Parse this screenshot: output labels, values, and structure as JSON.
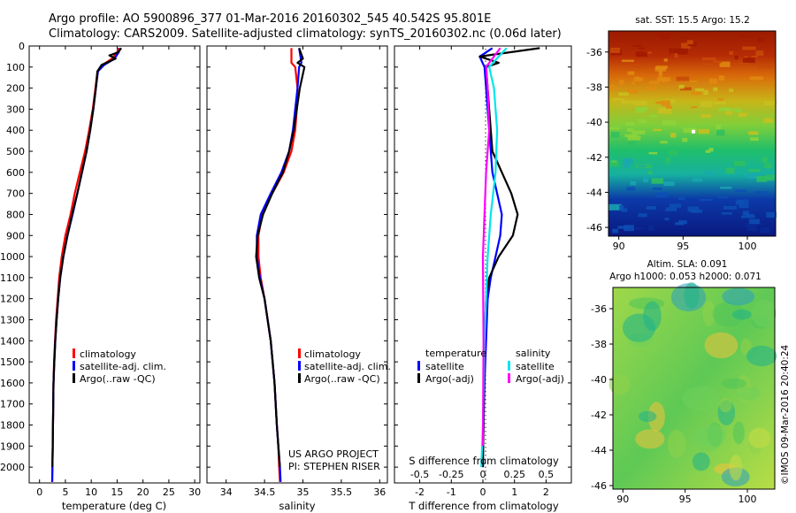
{
  "header": {
    "line1": "Argo profile: AO 5900896_377 01-Mar-2016 20160302_545 40.542S 95.801E",
    "line2": "Climatology: CARS2009. Satellite-adjusted climatology: synTS_20160302.nc (0.06d later)"
  },
  "colors": {
    "climatology": "#ff0000",
    "satellite": "#0000ff",
    "argo": "#000000",
    "sal_satellite": "#00e5ee",
    "sal_argo": "#ff00ff"
  },
  "depth_ticks": [
    "0",
    "100",
    "200",
    "300",
    "400",
    "500",
    "600",
    "700",
    "800",
    "900",
    "1000",
    "1100",
    "1200",
    "1300",
    "1400",
    "1500",
    "1600",
    "1700",
    "1800",
    "1900",
    "2000"
  ],
  "chart_data": [
    {
      "type": "line",
      "xlabel": "temperature (deg C)",
      "ylabel": "",
      "xlim": [
        -2,
        31
      ],
      "ylim": [
        2075,
        0
      ],
      "xticks": [
        "0",
        "5",
        "10",
        "15",
        "20",
        "25",
        "30"
      ],
      "legend": [
        "climatology",
        "satellite-adj. clim.",
        "Argo(..raw -QC)"
      ],
      "series": [
        {
          "name": "climatology",
          "color": "#ff0000",
          "x": [
            15.3,
            15.0,
            14.0,
            12.2,
            11.2,
            10.8,
            10.3,
            9.6,
            8.8,
            7.8,
            6.8,
            6.0,
            5.0,
            4.3,
            3.8,
            3.5,
            3.2,
            3.0,
            2.8,
            2.7,
            2.6,
            2.5,
            2.45
          ],
          "y": [
            10,
            30,
            60,
            90,
            120,
            200,
            300,
            400,
            500,
            600,
            700,
            800,
            900,
            1000,
            1100,
            1200,
            1300,
            1400,
            1500,
            1600,
            1800,
            2000,
            2070
          ]
        },
        {
          "name": "satellite-adj. clim.",
          "color": "#0000ff",
          "x": [
            15.6,
            15.3,
            14.5,
            12.5,
            11.3,
            10.9,
            10.4,
            9.8,
            9.1,
            8.2,
            7.3,
            6.4,
            5.4,
            4.6,
            4.0,
            3.6,
            3.3,
            3.05,
            2.85,
            2.7,
            2.6,
            2.5,
            2.45
          ],
          "y": [
            10,
            30,
            60,
            90,
            120,
            200,
            300,
            400,
            500,
            600,
            700,
            800,
            900,
            1000,
            1100,
            1200,
            1300,
            1400,
            1500,
            1600,
            1800,
            2000,
            2070
          ]
        },
        {
          "name": "Argo(..raw -QC)",
          "color": "#000000",
          "x": [
            15.8,
            15.2,
            13.5,
            14.7,
            12.0,
            11.2,
            10.9,
            10.4,
            9.8,
            9.1,
            8.2,
            7.3,
            6.3,
            5.4,
            4.6,
            4.0,
            3.6,
            3.3,
            3.05,
            2.85,
            2.7,
            2.6,
            2.5
          ],
          "y": [
            10,
            30,
            45,
            60,
            90,
            120,
            200,
            300,
            400,
            500,
            600,
            700,
            800,
            900,
            1000,
            1100,
            1200,
            1300,
            1400,
            1500,
            1600,
            1800,
            2000
          ]
        }
      ]
    },
    {
      "type": "line",
      "xlabel": "salinity",
      "ylabel": "",
      "xlim": [
        33.75,
        36.1
      ],
      "ylim": [
        2075,
        0
      ],
      "xticks": [
        "34",
        "34.5",
        "35",
        "35.5",
        "36"
      ],
      "legend": [
        "climatology",
        "satellite-adj. clim.",
        "Argo(..raw -QC)"
      ],
      "series": [
        {
          "name": "climatology",
          "color": "#ff0000",
          "x": [
            34.85,
            34.85,
            34.9,
            34.93,
            34.92,
            34.9,
            34.85,
            34.75,
            34.6,
            34.47,
            34.42,
            34.42,
            34.45,
            34.5,
            34.58,
            34.63,
            34.66,
            34.68,
            34.69,
            34.7
          ],
          "y": [
            10,
            80,
            100,
            200,
            300,
            400,
            500,
            600,
            700,
            800,
            900,
            1000,
            1100,
            1200,
            1400,
            1600,
            1800,
            1900,
            2000,
            2070
          ]
        },
        {
          "name": "satellite-adj. clim.",
          "color": "#0000ff",
          "x": [
            34.95,
            34.98,
            34.95,
            34.93,
            34.9,
            34.87,
            34.82,
            34.72,
            34.58,
            34.45,
            34.4,
            34.4,
            34.44,
            34.5,
            34.58,
            34.63,
            34.66,
            34.68,
            34.7,
            34.71
          ],
          "y": [
            10,
            80,
            100,
            200,
            300,
            400,
            500,
            600,
            700,
            800,
            900,
            1000,
            1100,
            1200,
            1400,
            1600,
            1800,
            1900,
            2000,
            2070
          ]
        },
        {
          "name": "Argo(..raw -QC)",
          "color": "#000000",
          "x": [
            34.95,
            35.0,
            34.93,
            35.02,
            34.96,
            34.92,
            34.88,
            34.82,
            34.74,
            34.6,
            34.48,
            34.41,
            34.39,
            34.43,
            34.5,
            34.58,
            34.63,
            34.66,
            34.68,
            34.7
          ],
          "y": [
            10,
            60,
            80,
            100,
            200,
            300,
            400,
            500,
            600,
            700,
            800,
            900,
            1000,
            1100,
            1200,
            1400,
            1600,
            1800,
            1900,
            2000
          ]
        }
      ]
    },
    {
      "type": "line",
      "xlabel": "T difference from climatology",
      "xlabel_top": "S difference from climatology",
      "ylabel": "",
      "xlim": [
        -2.8,
        2.8
      ],
      "ylim": [
        2075,
        0
      ],
      "xticks": [
        "-2",
        "-1",
        "0",
        "1",
        "2"
      ],
      "xticks_top": [
        "-0.5",
        "-0.25",
        "0",
        "0.25",
        "0.5"
      ],
      "legend_headers": [
        "temperature",
        "salinity"
      ],
      "legend": [
        "satellite",
        "Argo(-adj)",
        "satellite",
        "Argo(-adj)"
      ],
      "series": [
        {
          "name": "satellite",
          "color": "#0000ff",
          "x": [
            0.3,
            -0.1,
            0.05,
            0.1,
            0.2,
            0.3,
            0.45,
            0.6,
            0.55,
            0.4,
            0.25,
            0.15,
            0.1,
            0.05,
            0.02,
            0.0,
            0.0
          ],
          "y": [
            10,
            50,
            100,
            200,
            400,
            600,
            700,
            800,
            900,
            1000,
            1100,
            1200,
            1400,
            1600,
            1800,
            1900,
            2000
          ]
        },
        {
          "name": "Argo(-adj)",
          "color": "#000000",
          "x": [
            1.8,
            -0.1,
            0.5,
            0.1,
            0.2,
            0.3,
            0.6,
            0.9,
            1.1,
            0.95,
            0.5,
            0.2,
            0.1,
            0.05,
            0.03,
            0.02,
            0.0
          ],
          "y": [
            10,
            50,
            80,
            100,
            300,
            500,
            600,
            700,
            800,
            900,
            1000,
            1100,
            1200,
            1400,
            1600,
            1800,
            2000
          ]
        },
        {
          "name": "satellite",
          "color": "#00e5ee",
          "x": [
            0.75,
            0.5,
            0.2,
            0.35,
            0.45,
            0.4,
            0.25,
            0.15,
            0.05,
            0.0,
            -0.05
          ],
          "y": [
            10,
            50,
            100,
            200,
            400,
            600,
            800,
            1000,
            1400,
            1800,
            2000
          ]
        },
        {
          "name": "Argo(-adj)",
          "color": "#ff00ff",
          "x": [
            0.55,
            0.35,
            0.1,
            0.15,
            0.2,
            0.1,
            0.05,
            0.0,
            0.02,
            0.0
          ],
          "y": [
            10,
            50,
            100,
            200,
            400,
            600,
            800,
            1000,
            1400,
            1900
          ]
        }
      ]
    },
    {
      "type": "heatmap",
      "title": "sat. SST: 15.5 Argo: 15.2",
      "xlim": [
        89.2,
        102.2
      ],
      "ylim": [
        -46.5,
        -34.8
      ],
      "xticks": [
        "90",
        "95",
        "100"
      ],
      "yticks": [
        "-36",
        "-38",
        "-40",
        "-42",
        "-44",
        "-46"
      ],
      "marker": {
        "x": 95.8,
        "y": -40.54
      }
    },
    {
      "type": "heatmap",
      "title": "Altim. SLA: 0.091",
      "subtitle": "Argo h1000: 0.053 h2000: 0.071",
      "xlim": [
        89.2,
        102.2
      ],
      "ylim": [
        -46.2,
        -34.8
      ],
      "xticks": [
        "90",
        "95",
        "100"
      ],
      "yticks": [
        "-36",
        "-38",
        "-40",
        "-42",
        "-44",
        "-46"
      ],
      "marker": {
        "x": 95.8,
        "y": -40.54
      }
    }
  ],
  "footer": {
    "project": "US ARGO PROJECT",
    "pi": "PI: STEPHEN RISER",
    "stamp": "©IMOS 09-Mar-2016 20:40:24"
  }
}
